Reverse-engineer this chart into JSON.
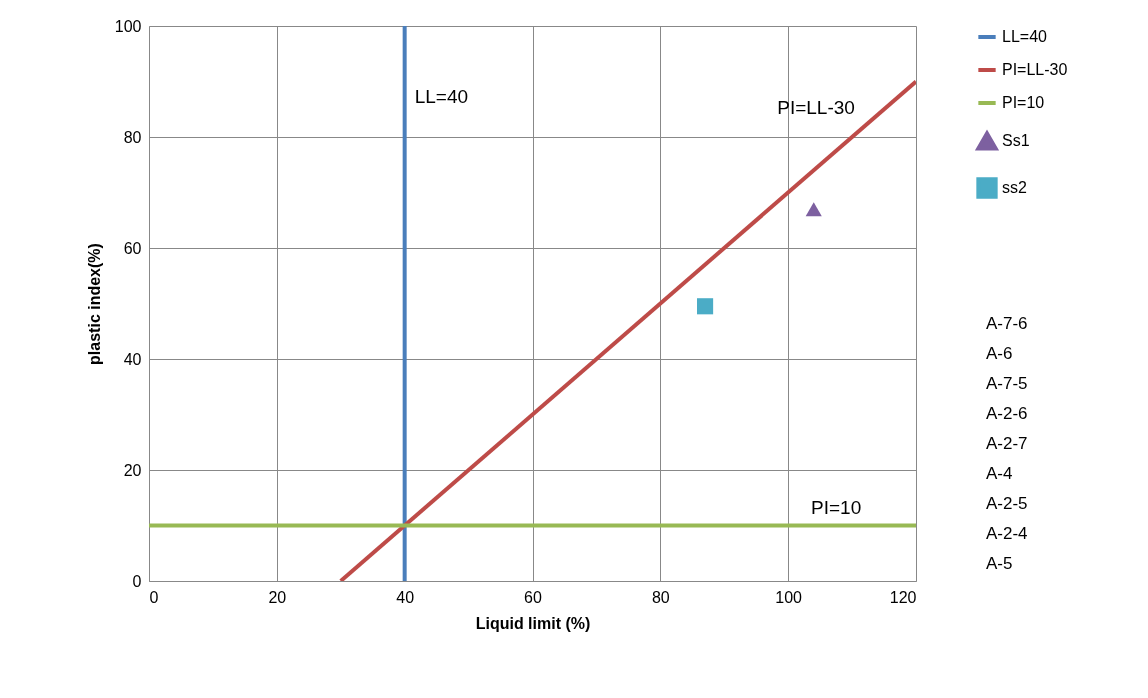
{
  "chart_data": {
    "type": "line",
    "xlabel": "Liquid limit (%)",
    "ylabel": "plastic index(%)",
    "xlim": [
      0,
      120
    ],
    "xticks": [
      0,
      20,
      40,
      60,
      80,
      100,
      120
    ],
    "ylim": [
      0,
      100
    ],
    "yticks": [
      0,
      20,
      40,
      60,
      80,
      100
    ],
    "grid": true,
    "legend": "right",
    "line_style": "solid",
    "series": [
      {
        "name": "LL=40",
        "color": "#4a7ebb",
        "x": [
          40,
          40
        ],
        "values": [
          0,
          100
        ]
      },
      {
        "name": "PI=LL-30",
        "color": "#be4b48",
        "x": [
          30,
          120
        ],
        "values": [
          0,
          90
        ]
      },
      {
        "name": "PI=10",
        "color": "#98b954",
        "x": [
          0,
          120
        ],
        "values": [
          10,
          10
        ]
      },
      {
        "name": "Ss1",
        "color": "#7d60a0",
        "type": "scatter",
        "marker": "triangle",
        "x": [
          104
        ],
        "values": [
          67
        ]
      },
      {
        "name": "ss2",
        "color": "#4bacc6",
        "type": "scatter",
        "marker": "square",
        "x": [
          87
        ],
        "values": [
          49.5
        ]
      }
    ],
    "annotations": [
      {
        "text": "LL=40",
        "x": 40,
        "y": 84
      },
      {
        "text": "PI=LL-30",
        "x": 112,
        "y": 82
      },
      {
        "text": "PI=10",
        "x": 113,
        "y": 10
      },
      "A-7-6",
      "A-6",
      "A-7-5",
      "A-2-6",
      "A-2-7",
      "A-4",
      "A-2-5",
      "A-2-4",
      "A-5"
    ]
  }
}
